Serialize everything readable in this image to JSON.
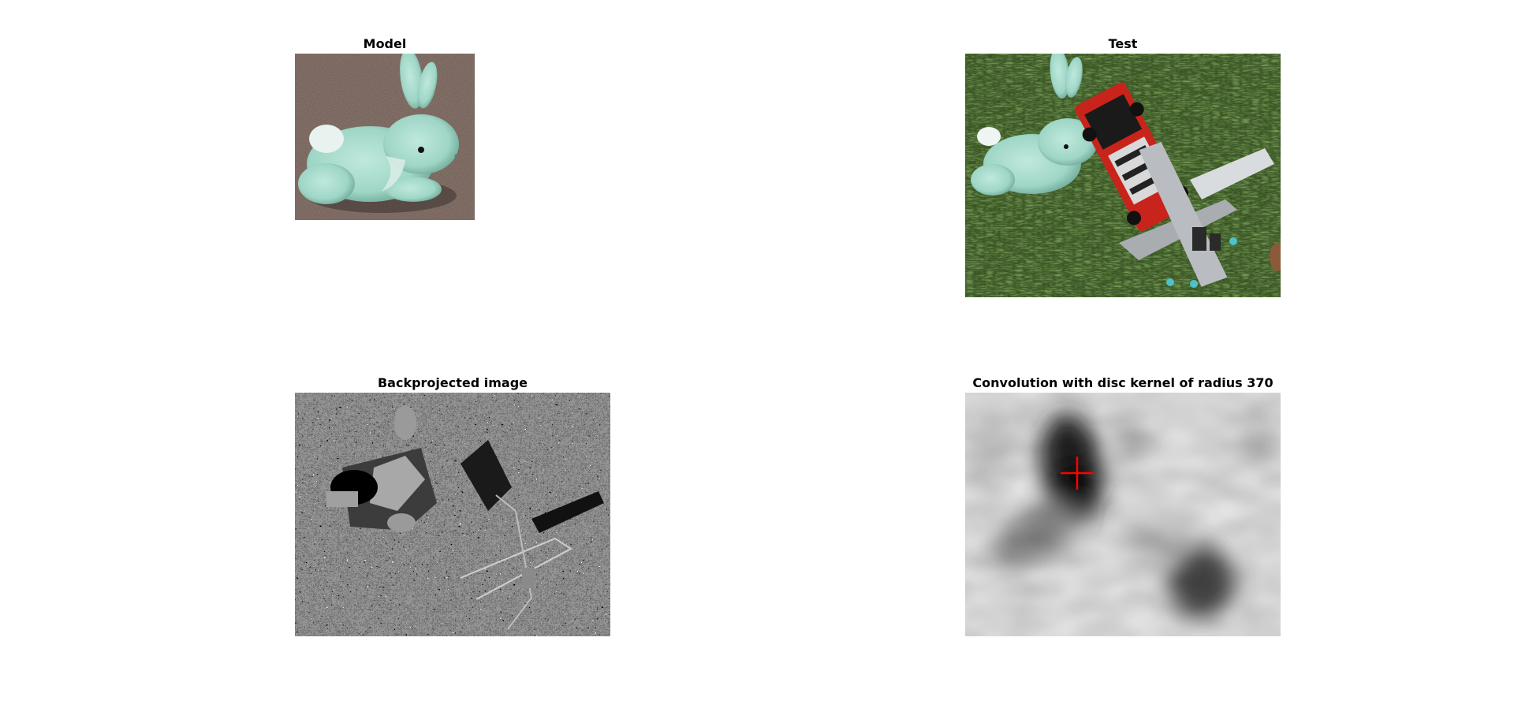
{
  "panels": {
    "model": {
      "title": "Model",
      "content": "mint-green plush bunny on brown gravel"
    },
    "test": {
      "title": "Test",
      "content": "plush bunny, toy fire truck and toy airplane on grass"
    },
    "backprojected": {
      "title": "Backprojected image",
      "content": "grayscale histogram backprojection"
    },
    "convolution": {
      "title": "Convolution with disc kernel of radius 370",
      "content": "blurred response map with red cross marker at peak",
      "marker_color": "#ff0000",
      "marker_icon": "cross-marker-icon"
    }
  },
  "colors": {
    "background": "#ffffff",
    "bunny": "#a8ddcf",
    "grass": "#3e5f25",
    "gravel": "#6e5a50",
    "truck": "#c8241b",
    "plane": "#a9adb2",
    "marker": "#ff0000"
  }
}
